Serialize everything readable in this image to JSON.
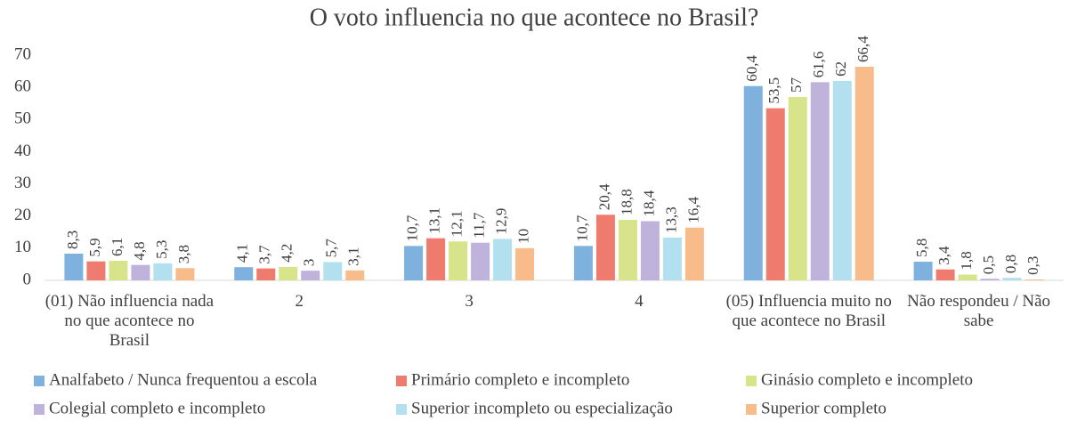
{
  "chart_data": {
    "type": "bar",
    "title": "O voto influencia no que acontece no Brasil?",
    "categories": [
      "(01) Não influencia nada no que acontece no Brasil",
      "2",
      "3",
      "4",
      "(05) Influencia muito no que acontece no Brasil",
      "Não respondeu / Não sabe"
    ],
    "series": [
      {
        "name": "Analfabeto / Nunca frequentou a escola",
        "color": "#7eb1de",
        "values": [
          8.3,
          4.1,
          10.7,
          10.7,
          60.4,
          5.8
        ],
        "value_labels": [
          "8,3",
          "4,1",
          "10,7",
          "10,7",
          "60,4",
          "5,8"
        ]
      },
      {
        "name": "Primário completo e incompleto",
        "color": "#ef7b6e",
        "values": [
          5.9,
          3.7,
          13.1,
          20.4,
          53.5,
          3.4
        ],
        "value_labels": [
          "5,9",
          "3,7",
          "13,1",
          "20,4",
          "53,5",
          "3,4"
        ]
      },
      {
        "name": "Ginásio completo e incompleto",
        "color": "#d8e48a",
        "values": [
          6.1,
          4.2,
          12.1,
          18.8,
          57,
          1.8
        ],
        "value_labels": [
          "6,1",
          "4,2",
          "12,1",
          "18,8",
          "57",
          "1,8"
        ]
      },
      {
        "name": "Colegial completo e incompleto",
        "color": "#bfb3dc",
        "values": [
          4.8,
          3,
          11.7,
          18.4,
          61.6,
          0.5
        ],
        "value_labels": [
          "4,8",
          "3",
          "11,7",
          "18,4",
          "61,6",
          "0,5"
        ]
      },
      {
        "name": "Superior incompleto ou especialização",
        "color": "#b3e0ef",
        "values": [
          5.3,
          5.7,
          12.9,
          13.3,
          62,
          0.8
        ],
        "value_labels": [
          "5,3",
          "5,7",
          "12,9",
          "13,3",
          "62",
          "0,8"
        ]
      },
      {
        "name": "Superior completo",
        "color": "#f8bb8a",
        "values": [
          3.8,
          3.1,
          10,
          16.4,
          66.4,
          0.3
        ],
        "value_labels": [
          "3,8",
          "3,1",
          "10",
          "16,4",
          "66,4",
          "0,3"
        ]
      }
    ],
    "ylim": [
      0,
      70
    ],
    "yticks": [
      0,
      10,
      20,
      30,
      40,
      50,
      60,
      70
    ],
    "grid": false,
    "legend": "bottom"
  }
}
